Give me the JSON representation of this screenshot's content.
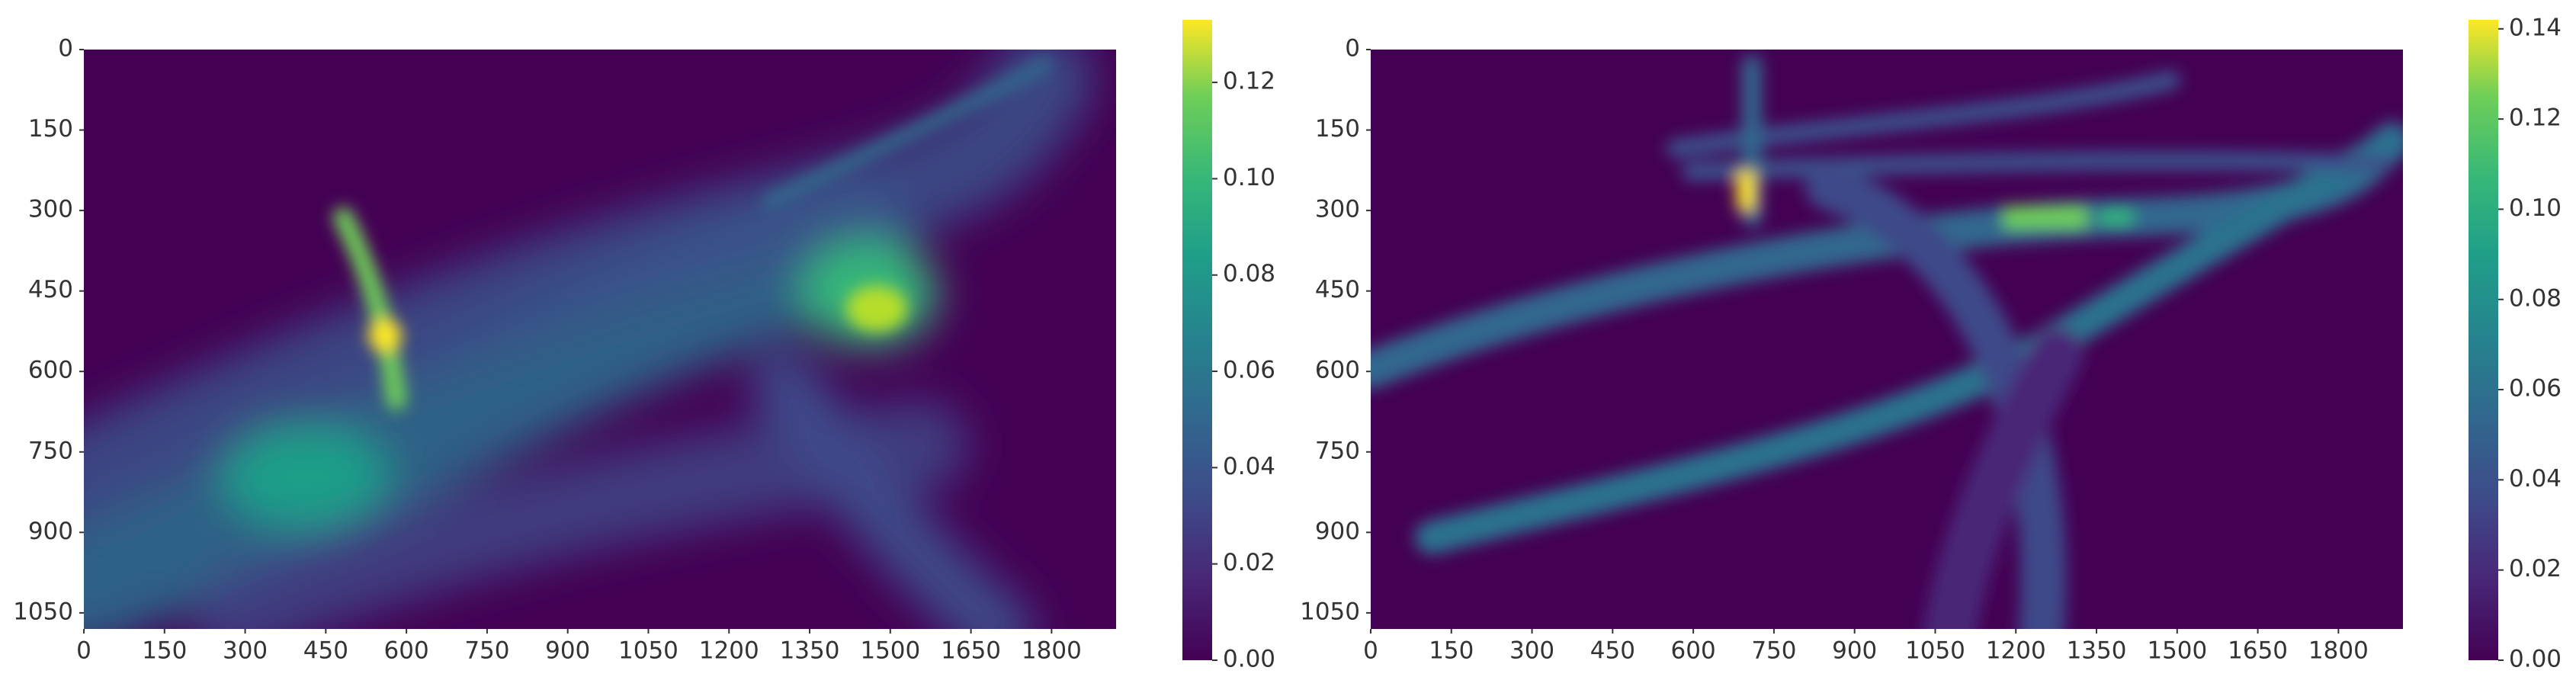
{
  "chart_data": [
    {
      "type": "heatmap",
      "xlim": [
        0,
        1920
      ],
      "xticks": [
        0,
        150,
        300,
        450,
        600,
        750,
        900,
        1050,
        1200,
        1350,
        1500,
        1650,
        1800
      ],
      "ylim": [
        0,
        1080
      ],
      "yticks": [
        0,
        150,
        300,
        450,
        600,
        750,
        900,
        1050
      ],
      "colorbar_lim": [
        0,
        0.133
      ],
      "colorbar_ticks": [
        {
          "value": 0,
          "label": "0.00"
        },
        {
          "value": 0.02,
          "label": "0.02"
        },
        {
          "value": 0.04,
          "label": "0.04"
        },
        {
          "value": 0.06,
          "label": "0.06"
        },
        {
          "value": 0.08,
          "label": "0.08"
        },
        {
          "value": 0.1,
          "label": "0.10"
        },
        {
          "value": 0.12,
          "label": "0.12"
        }
      ]
    },
    {
      "type": "heatmap",
      "xlim": [
        0,
        1920
      ],
      "xticks": [
        0,
        150,
        300,
        450,
        600,
        750,
        900,
        1050,
        1200,
        1350,
        1500,
        1650,
        1800
      ],
      "ylim": [
        0,
        1080
      ],
      "yticks": [
        0,
        150,
        300,
        450,
        600,
        750,
        900,
        1050
      ],
      "colorbar_lim": [
        0,
        0.142
      ],
      "colorbar_ticks": [
        {
          "value": 0,
          "label": "0.00"
        },
        {
          "value": 0.02,
          "label": "0.02"
        },
        {
          "value": 0.04,
          "label": "0.04"
        },
        {
          "value": 0.06,
          "label": "0.06"
        },
        {
          "value": 0.08,
          "label": "0.08"
        },
        {
          "value": 0.1,
          "label": "0.10"
        },
        {
          "value": 0.12,
          "label": "0.12"
        },
        {
          "value": 0.14,
          "label": "0.14"
        }
      ]
    }
  ]
}
